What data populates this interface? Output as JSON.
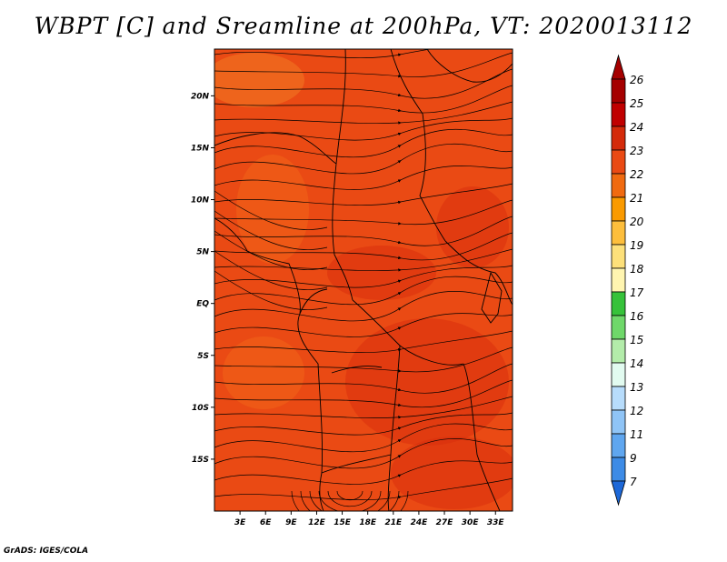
{
  "figure": {
    "title": "WBPT [C] and Sreamline at 200hPa, VT: 2020013112",
    "credit": "GrADS: IGES/COLA"
  },
  "map": {
    "lon_range": [
      0,
      35
    ],
    "lat_range": [
      -20,
      24.5
    ],
    "lat_ticks": [
      {
        "value": 20,
        "label": "20N"
      },
      {
        "value": 15,
        "label": "15N"
      },
      {
        "value": 10,
        "label": "10N"
      },
      {
        "value": 5,
        "label": "5N"
      },
      {
        "value": 0,
        "label": "EQ"
      },
      {
        "value": -5,
        "label": "5S"
      },
      {
        "value": -10,
        "label": "10S"
      },
      {
        "value": -15,
        "label": "15S"
      }
    ],
    "lon_ticks": [
      {
        "value": 3,
        "label": "3E"
      },
      {
        "value": 6,
        "label": "6E"
      },
      {
        "value": 9,
        "label": "9E"
      },
      {
        "value": 12,
        "label": "12E"
      },
      {
        "value": 15,
        "label": "15E"
      },
      {
        "value": 18,
        "label": "18E"
      },
      {
        "value": 21,
        "label": "21E"
      },
      {
        "value": 24,
        "label": "24E"
      },
      {
        "value": 27,
        "label": "27E"
      },
      {
        "value": 30,
        "label": "30E"
      },
      {
        "value": 33,
        "label": "33E"
      }
    ],
    "field_colors": {
      "base": "#ea4a14",
      "warm": "#f06418",
      "hot": "#d8300c",
      "cool": "#f07a22"
    }
  },
  "colorbar": {
    "levels": [
      {
        "label": "26",
        "color": "#a50000"
      },
      {
        "label": "25",
        "color": "#c00000"
      },
      {
        "label": "24",
        "color": "#d42a0a"
      },
      {
        "label": "23",
        "color": "#ea4a14"
      },
      {
        "label": "22",
        "color": "#f06a10"
      },
      {
        "label": "21",
        "color": "#fa9a00"
      },
      {
        "label": "20",
        "color": "#fdbe3c"
      },
      {
        "label": "19",
        "color": "#fde07a"
      },
      {
        "label": "18",
        "color": "#fff5b0"
      },
      {
        "label": "17",
        "color": "#36c23a"
      },
      {
        "label": "16",
        "color": "#6fd86a"
      },
      {
        "label": "15",
        "color": "#b3ecaa"
      },
      {
        "label": "14",
        "color": "#e2fbf0"
      },
      {
        "label": "13",
        "color": "#b7dcfb"
      },
      {
        "label": "12",
        "color": "#8fc4f6"
      },
      {
        "label": "11",
        "color": "#5fa6ef"
      },
      {
        "label": "9",
        "color": "#3d8be6"
      },
      {
        "label": "7",
        "color": "#1d68d8"
      }
    ],
    "top_cap_color": "#a50000",
    "bottom_cap_color": "#1d68d8"
  }
}
